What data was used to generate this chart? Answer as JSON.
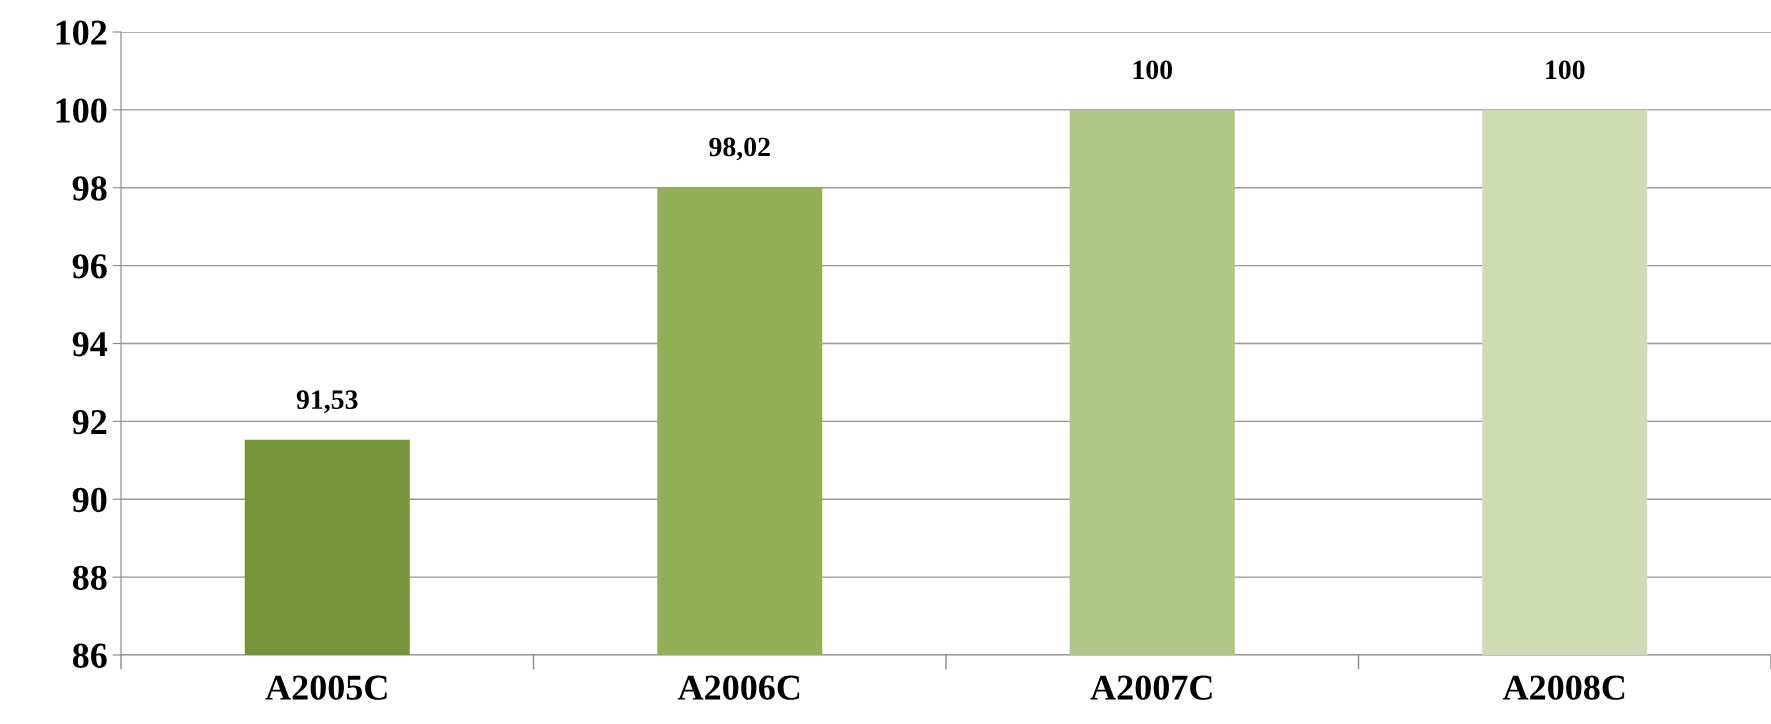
{
  "chart_data": {
    "type": "bar",
    "categories": [
      "A2005C",
      "A2006C",
      "A2007C",
      "A2008C"
    ],
    "values": [
      91.53,
      98.02,
      100,
      100
    ],
    "colors": [
      "#77933c",
      "#93b058",
      "#afc686",
      "#cfdbb5"
    ],
    "value_labels": [
      "91,53",
      "98,02",
      "100",
      "100"
    ],
    "ylim": [
      86,
      102
    ],
    "yticks": [
      86,
      88,
      90,
      92,
      94,
      96,
      98,
      100,
      102
    ],
    "grid": "y",
    "legend": false
  }
}
